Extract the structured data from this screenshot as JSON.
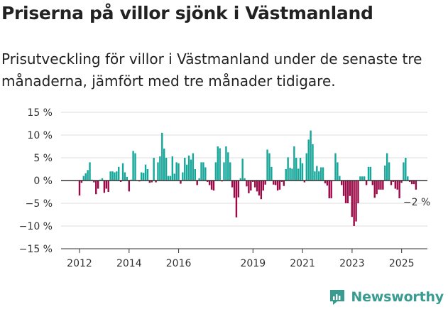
{
  "title": "Priserna på villor sjönk i Västmanland",
  "subtitle": "Prisutveckling för villor i Västmanland under de senaste tre månaderna, jämfört med tre månader tidigare.",
  "brand": {
    "name": "Newsworthy",
    "logo_icon": "newsworthy-logo-icon"
  },
  "colors": {
    "positive": "#16a79b",
    "negative": "#9b0a48",
    "axis": "#333333",
    "grid": "#dddddd",
    "brand": "#3a9c91"
  },
  "chart_data": {
    "type": "bar",
    "title": "Priserna på villor sjönk i Västmanland",
    "xlabel": "",
    "ylabel": "",
    "ylim": [
      -15,
      15
    ],
    "yticks": [
      15,
      10,
      5,
      0,
      -5,
      -10,
      -15
    ],
    "ytick_labels": [
      "15 %",
      "10 %",
      "5 %",
      "0 %",
      "−5 %",
      "−10 %",
      "−15 %"
    ],
    "xticks": [
      2012,
      2014,
      2016,
      2019,
      2021,
      2023,
      2025
    ],
    "xtick_labels": [
      "2012",
      "2014",
      "2016",
      "2019",
      "2021",
      "2023",
      "2025"
    ],
    "x_start": 2012.0,
    "x_step": 0.0833,
    "series": [
      {
        "name": "Prisutveckling",
        "values": [
          -3.3,
          -0.5,
          1.0,
          1.6,
          2.3,
          4.0,
          0.2,
          -0.4,
          -3.0,
          -1.8,
          0.2,
          0.5,
          -2.7,
          -1.8,
          -2.5,
          2.0,
          2.0,
          1.8,
          2.0,
          3.0,
          -0.3,
          3.8,
          1.8,
          0.8,
          -2.4,
          0.2,
          6.5,
          6.0,
          -0.1,
          -0.2,
          1.8,
          1.7,
          3.5,
          2.5,
          -0.5,
          -0.4,
          5.0,
          -0.4,
          4.0,
          5.3,
          10.5,
          7.0,
          5.0,
          1.0,
          1.0,
          5.3,
          1.5,
          4.0,
          3.8,
          -0.7,
          1.8,
          5.0,
          3.5,
          5.5,
          4.6,
          6.0,
          2.5,
          -1.0,
          0.5,
          4.0,
          4.0,
          2.9,
          -0.3,
          -1.0,
          -2.0,
          -2.2,
          4.0,
          7.5,
          7.1,
          -0.2,
          4.0,
          7.5,
          6.2,
          4.0,
          -1.5,
          -3.8,
          -8.1,
          -3.7,
          0.5,
          4.8,
          0.5,
          -1.3,
          -2.8,
          -2.2,
          -0.3,
          -1.5,
          -2.4,
          -3.3,
          -4.1,
          -2.2,
          -0.9,
          6.8,
          6.0,
          3.0,
          -0.9,
          -1.0,
          -2.2,
          -2.0,
          -0.3,
          -1.2,
          2.5,
          5.1,
          2.8,
          2.6,
          7.5,
          5.0,
          2.6,
          5.0,
          3.8,
          -0.4,
          6.0,
          9.0,
          11.0,
          8.0,
          2.0,
          3.2,
          2.0,
          2.9,
          2.9,
          -0.6,
          -1.1,
          -3.9,
          -3.9,
          -0.1,
          6.0,
          4.0,
          1.0,
          -1.0,
          -3.4,
          -5.0,
          -5.0,
          -3.4,
          -8.0,
          -10.0,
          -9.0,
          -5.0,
          0.9,
          0.9,
          0.9,
          -1.0,
          3.0,
          3.0,
          -1.0,
          -3.8,
          -3.0,
          -2.0,
          -2.0,
          -2.0,
          3.3,
          6.0,
          4.0,
          -1.0,
          -0.3,
          -1.8,
          -2.0,
          -3.9,
          -0.5,
          4.0,
          5.0,
          0.9,
          -0.3,
          -0.8,
          -0.8,
          -2.0
        ]
      }
    ],
    "annotations": [
      {
        "label": "−2 %",
        "series_index": 0,
        "point": "last"
      }
    ]
  }
}
